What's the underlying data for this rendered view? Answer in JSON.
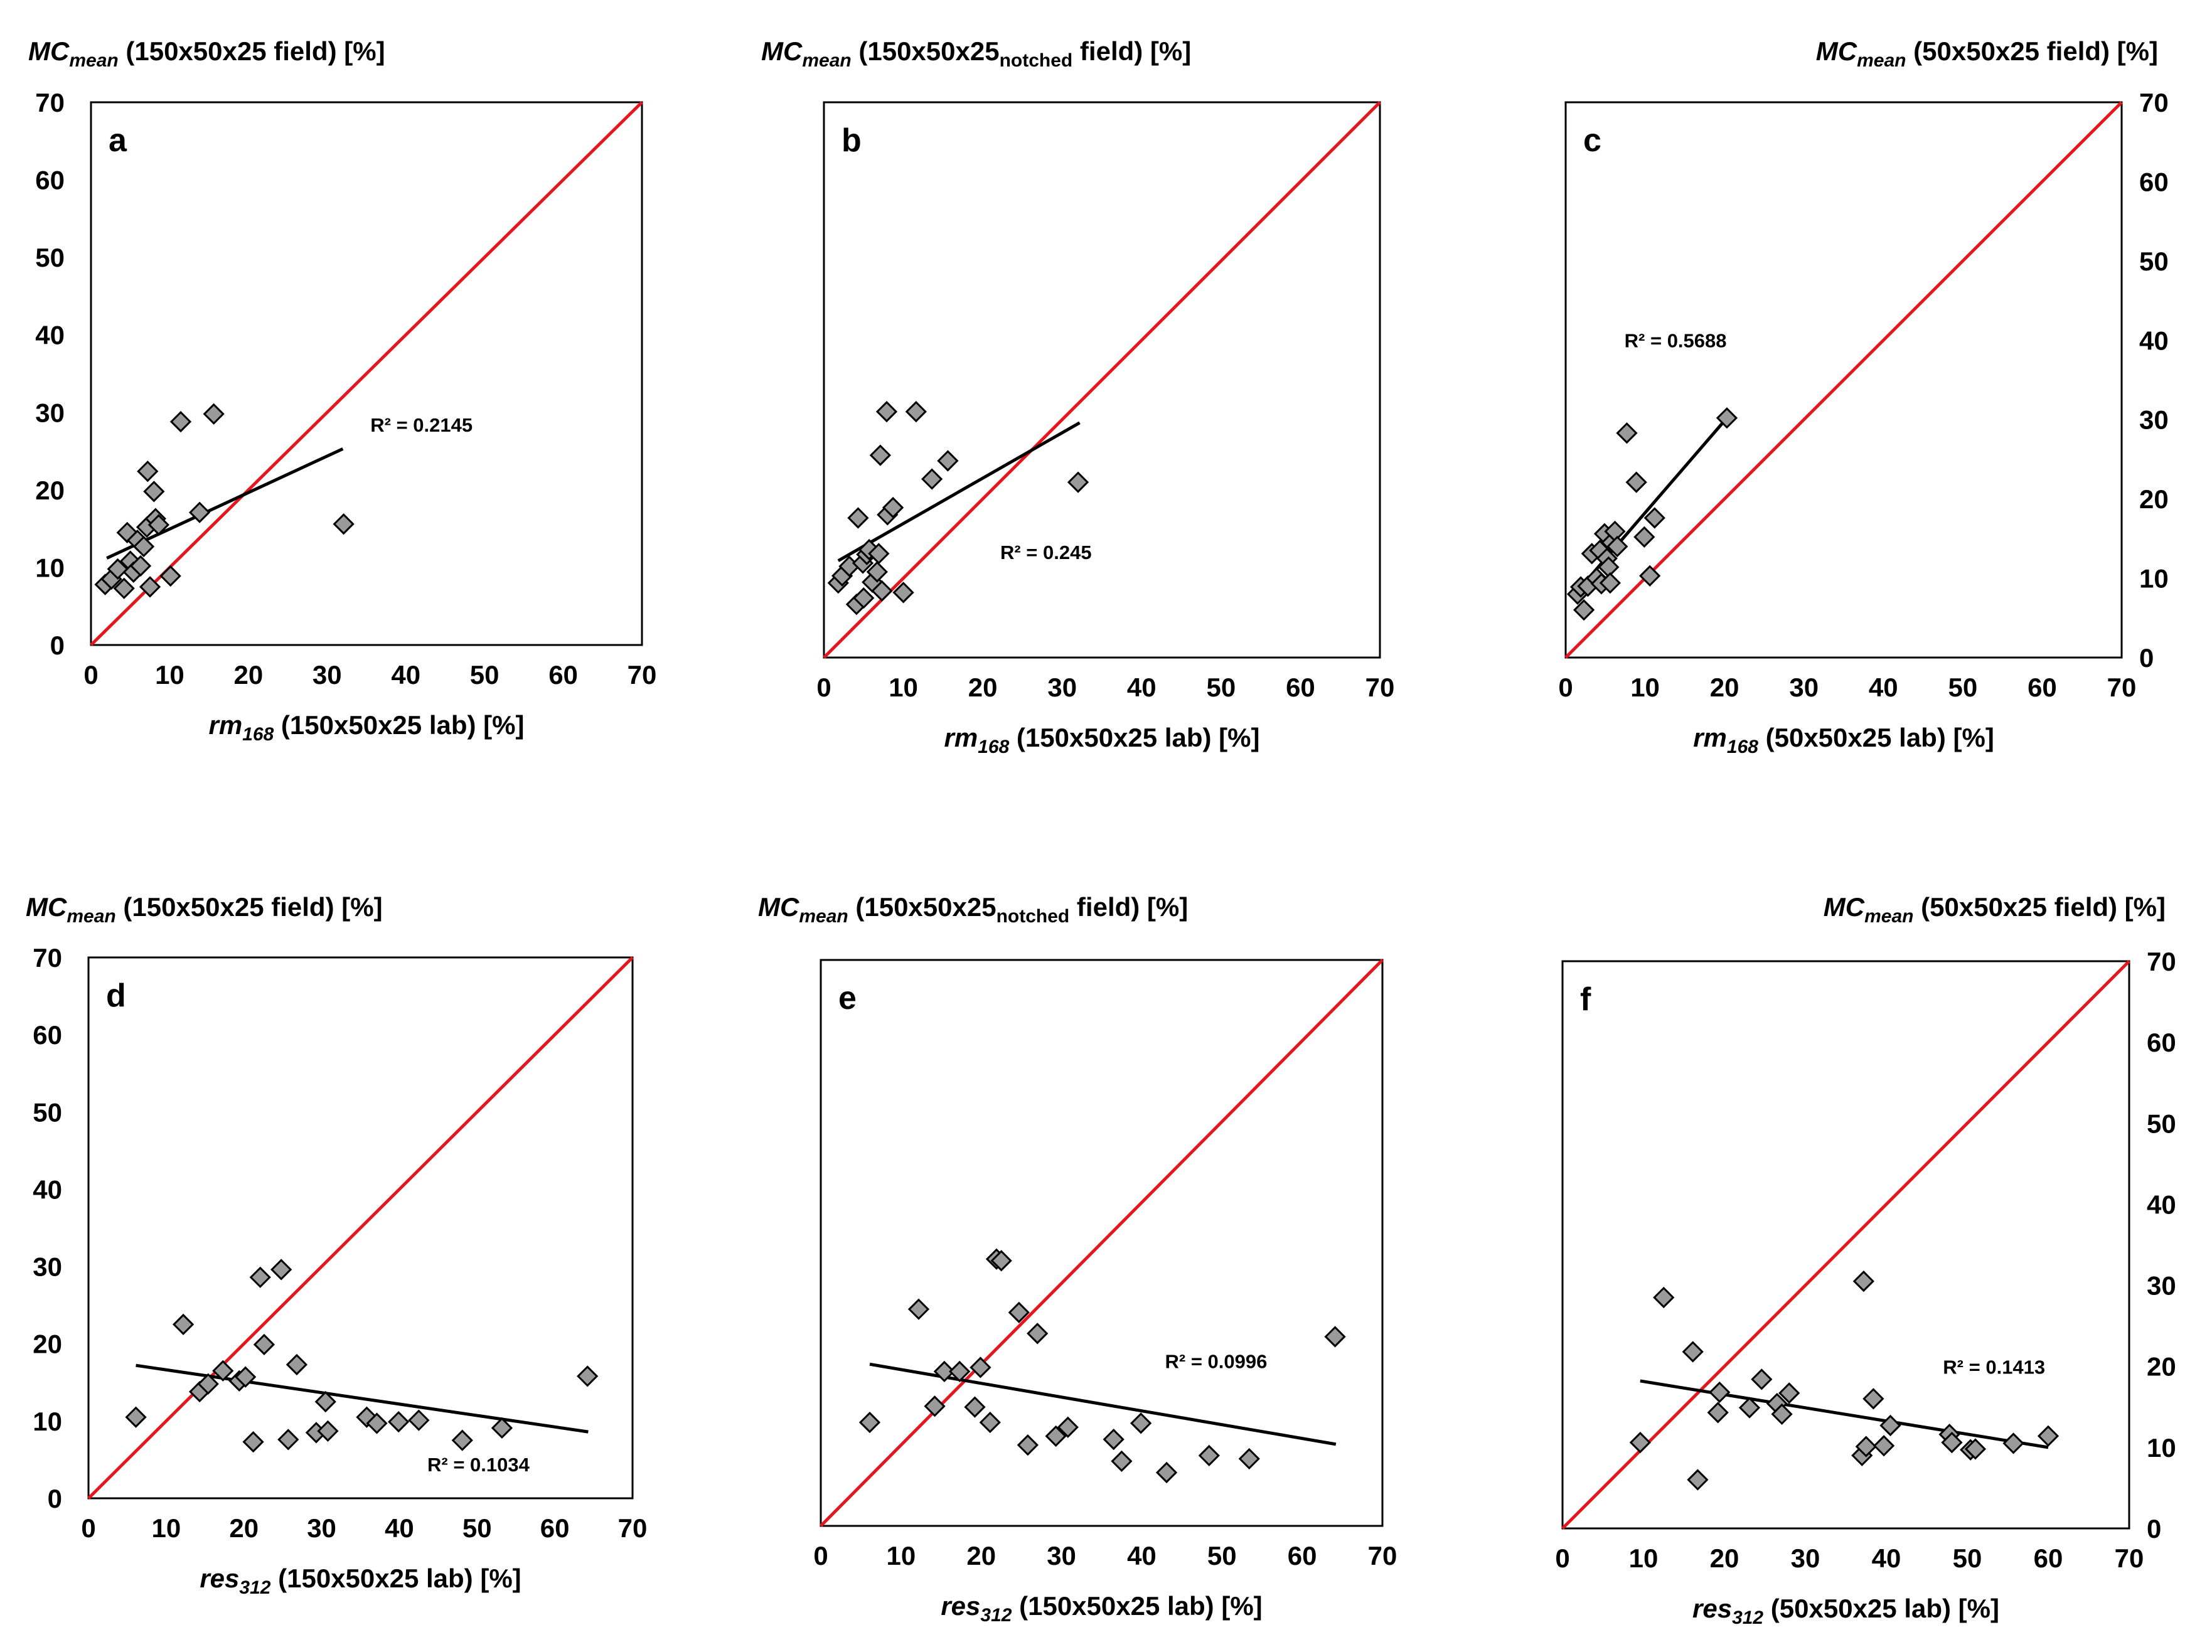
{
  "colors": {
    "identity_line": "#e3171d",
    "marker_fill": "#9a9a9a",
    "marker_stroke": "#000000",
    "trend_line": "#000000",
    "frame": "#000000"
  },
  "chart_data": [
    {
      "id": "a",
      "type": "scatter",
      "panel_label": "a",
      "xlim": [
        0,
        70
      ],
      "ylim": [
        0,
        70
      ],
      "xticks": [
        "0",
        "10",
        "20",
        "30",
        "40",
        "50",
        "60",
        "70"
      ],
      "yticks": [
        "0",
        "10",
        "20",
        "30",
        "40",
        "50",
        "60",
        "70"
      ],
      "y_axis_side": "left",
      "xlabel": {
        "italic": "rm",
        "sub": "168",
        "rest": " (150x50x25 lab) [%]"
      },
      "ylabel": {
        "italic": "MC",
        "sub": "mean",
        "rest": " (150x50x25 field) [%]"
      },
      "r2": "R² = 0.2145",
      "r2_pos": [
        35.5,
        27.5
      ],
      "trend": {
        "x0": 2,
        "y0": 11.2,
        "x1": 32,
        "y1": 25.3
      },
      "points": [
        [
          1.8,
          7.8
        ],
        [
          2.6,
          8.5
        ],
        [
          3.4,
          9.8
        ],
        [
          4.2,
          7.3
        ],
        [
          4.6,
          14.5
        ],
        [
          5.0,
          10.8
        ],
        [
          5.4,
          9.4
        ],
        [
          5.9,
          13.5
        ],
        [
          6.3,
          10.2
        ],
        [
          6.7,
          12.7
        ],
        [
          7.1,
          15.2
        ],
        [
          7.2,
          22.4
        ],
        [
          7.5,
          7.5
        ],
        [
          8.0,
          19.8
        ],
        [
          8.2,
          16.3
        ],
        [
          8.6,
          15.5
        ],
        [
          10.1,
          8.9
        ],
        [
          11.4,
          28.8
        ],
        [
          13.8,
          17.1
        ],
        [
          15.6,
          29.8
        ],
        [
          32.1,
          15.6
        ]
      ]
    },
    {
      "id": "b",
      "type": "scatter",
      "panel_label": "b",
      "xlim": [
        0,
        70
      ],
      "ylim": [
        0,
        70
      ],
      "xticks": [
        "0",
        "10",
        "20",
        "30",
        "40",
        "50",
        "60",
        "70"
      ],
      "yticks": [],
      "y_axis_side": "none",
      "xlabel": {
        "italic": "rm",
        "sub": "168",
        "rest": " (150x50x25 lab) [%]"
      },
      "ylabel": {
        "italic": "MC",
        "sub": "mean",
        "rest": " (150x50x25",
        "sub2": "notched",
        "rest2": " field) [%]"
      },
      "r2": "R² = 0.245",
      "r2_pos": [
        22.2,
        12.4
      ],
      "trend": {
        "x0": 1.8,
        "y0": 12.2,
        "x1": 32.2,
        "y1": 29.6
      },
      "points": [
        [
          1.8,
          9.4
        ],
        [
          2.3,
          10.3
        ],
        [
          3.2,
          11.5
        ],
        [
          4.1,
          6.7
        ],
        [
          4.3,
          17.6
        ],
        [
          4.9,
          11.9
        ],
        [
          5.0,
          7.5
        ],
        [
          5.4,
          13.0
        ],
        [
          5.7,
          13.6
        ],
        [
          6.1,
          9.5
        ],
        [
          6.7,
          10.8
        ],
        [
          6.9,
          13.1
        ],
        [
          7.1,
          25.5
        ],
        [
          7.3,
          8.4
        ],
        [
          7.9,
          31.0
        ],
        [
          8.0,
          18.0
        ],
        [
          8.7,
          18.9
        ],
        [
          10.0,
          8.2
        ],
        [
          11.6,
          31.0
        ],
        [
          13.6,
          22.5
        ],
        [
          15.6,
          24.8
        ],
        [
          32.0,
          22.1
        ]
      ]
    },
    {
      "id": "c",
      "type": "scatter",
      "panel_label": "c",
      "xlim": [
        0,
        70
      ],
      "ylim": [
        0,
        70
      ],
      "xticks": [
        "0",
        "10",
        "20",
        "30",
        "40",
        "50",
        "60",
        "70"
      ],
      "yticks": [
        "0",
        "10",
        "20",
        "30",
        "40",
        "50",
        "60",
        "70"
      ],
      "y_axis_side": "right",
      "xlabel": {
        "italic": "rm",
        "sub": "168",
        "rest": " (50x50x25 lab) [%]"
      },
      "ylabel": {
        "italic": "MC",
        "sub": "mean",
        "rest": " (50x50x25 field) [%]"
      },
      "r2": "R² = 0.5688",
      "r2_pos": [
        7.4,
        39.1
      ],
      "trend": {
        "x0": 1.6,
        "y0": 8.5,
        "x1": 20.3,
        "y1": 30.2
      },
      "points": [
        [
          1.5,
          8.0
        ],
        [
          1.9,
          8.9
        ],
        [
          2.3,
          6.0
        ],
        [
          2.8,
          9.0
        ],
        [
          3.3,
          13.1
        ],
        [
          3.9,
          10.0
        ],
        [
          4.3,
          13.5
        ],
        [
          4.5,
          9.3
        ],
        [
          4.9,
          15.6
        ],
        [
          5.2,
          12.5
        ],
        [
          5.4,
          11.4
        ],
        [
          5.6,
          9.4
        ],
        [
          5.8,
          14.5
        ],
        [
          6.2,
          15.9
        ],
        [
          6.5,
          14.0
        ],
        [
          7.7,
          28.3
        ],
        [
          8.9,
          22.1
        ],
        [
          9.9,
          15.2
        ],
        [
          10.6,
          10.3
        ],
        [
          11.2,
          17.6
        ],
        [
          20.3,
          30.2
        ]
      ]
    },
    {
      "id": "d",
      "type": "scatter",
      "panel_label": "d",
      "xlim": [
        0,
        70
      ],
      "ylim": [
        0,
        70
      ],
      "xticks": [
        "0",
        "10",
        "20",
        "30",
        "40",
        "50",
        "60",
        "70"
      ],
      "yticks": [
        "0",
        "10",
        "20",
        "30",
        "40",
        "50",
        "60",
        "70"
      ],
      "y_axis_side": "left",
      "xlabel": {
        "italic": "res",
        "sub": "312",
        "rest": " (150x50x25 lab) [%]"
      },
      "ylabel": {
        "italic": "MC",
        "sub": "mean",
        "rest": " (150x50x25 field) [%]"
      },
      "r2": "R² = 0.1034",
      "r2_pos": [
        43.6,
        3.5
      ],
      "trend": {
        "x0": 6.1,
        "y0": 17.2,
        "x1": 64.3,
        "y1": 8.6
      },
      "points": [
        [
          6.1,
          10.5
        ],
        [
          12.2,
          22.5
        ],
        [
          14.3,
          13.8
        ],
        [
          15.4,
          14.8
        ],
        [
          17.3,
          16.5
        ],
        [
          19.4,
          15.2
        ],
        [
          20.2,
          15.7
        ],
        [
          21.2,
          7.3
        ],
        [
          22.1,
          28.6
        ],
        [
          22.6,
          19.9
        ],
        [
          24.8,
          29.6
        ],
        [
          25.7,
          7.6
        ],
        [
          26.8,
          17.3
        ],
        [
          29.3,
          8.5
        ],
        [
          30.5,
          12.5
        ],
        [
          30.8,
          8.7
        ],
        [
          35.8,
          10.5
        ],
        [
          37.1,
          9.7
        ],
        [
          39.9,
          9.9
        ],
        [
          42.5,
          10.1
        ],
        [
          48.1,
          7.5
        ],
        [
          53.2,
          9.1
        ],
        [
          64.2,
          15.8
        ]
      ]
    },
    {
      "id": "e",
      "type": "scatter",
      "panel_label": "e",
      "xlim": [
        0,
        70
      ],
      "ylim": [
        0,
        70
      ],
      "xticks": [
        "0",
        "10",
        "20",
        "30",
        "40",
        "50",
        "60",
        "70"
      ],
      "yticks": [],
      "y_axis_side": "none",
      "xlabel": {
        "italic": "res",
        "sub": "312",
        "rest": " (150x50x25 lab) [%]"
      },
      "ylabel": {
        "italic": "MC",
        "sub": "mean",
        "rest": " (150x50x25",
        "sub2": "notched",
        "rest2": " field) [%]"
      },
      "r2": "R² = 0.0996",
      "r2_pos": [
        42.9,
        19.5
      ],
      "trend": {
        "x0": 6.1,
        "y0": 20.0,
        "x1": 64.2,
        "y1": 10.1
      },
      "points": [
        [
          6.1,
          12.8
        ],
        [
          12.2,
          26.8
        ],
        [
          14.2,
          14.8
        ],
        [
          15.4,
          19.1
        ],
        [
          17.3,
          19.1
        ],
        [
          19.2,
          14.7
        ],
        [
          19.9,
          19.6
        ],
        [
          21.1,
          12.8
        ],
        [
          21.9,
          33.0
        ],
        [
          22.5,
          32.8
        ],
        [
          24.7,
          26.4
        ],
        [
          25.8,
          10.0
        ],
        [
          27.0,
          23.8
        ],
        [
          29.3,
          11.1
        ],
        [
          30.8,
          12.2
        ],
        [
          36.5,
          10.7
        ],
        [
          37.5,
          8.0
        ],
        [
          39.9,
          12.7
        ],
        [
          43.1,
          6.6
        ],
        [
          48.4,
          8.7
        ],
        [
          53.4,
          8.3
        ],
        [
          64.1,
          23.4
        ]
      ]
    },
    {
      "id": "f",
      "type": "scatter",
      "panel_label": "f",
      "xlim": [
        0,
        70
      ],
      "ylim": [
        0,
        70
      ],
      "xticks": [
        "0",
        "10",
        "20",
        "30",
        "40",
        "50",
        "60",
        "70"
      ],
      "yticks": [
        "0",
        "10",
        "20",
        "30",
        "40",
        "50",
        "60",
        "70"
      ],
      "y_axis_side": "right",
      "xlabel": {
        "italic": "res",
        "sub": "312",
        "rest": " (50x50x25 lab) [%]"
      },
      "ylabel": {
        "italic": "MC",
        "sub": "mean",
        "rest": " (50x50x25 field) [%]"
      },
      "r2": "R² = 0.1413",
      "r2_pos": [
        47.0,
        19.1
      ],
      "trend": {
        "x0": 9.6,
        "y0": 18.2,
        "x1": 60.0,
        "y1": 10.0
      },
      "points": [
        [
          9.6,
          10.6
        ],
        [
          12.5,
          28.5
        ],
        [
          16.1,
          21.8
        ],
        [
          16.7,
          6.0
        ],
        [
          19.2,
          14.3
        ],
        [
          19.4,
          16.8
        ],
        [
          23.1,
          14.9
        ],
        [
          24.6,
          18.4
        ],
        [
          26.5,
          15.4
        ],
        [
          27.1,
          14.1
        ],
        [
          28.0,
          16.7
        ],
        [
          37.0,
          9.0
        ],
        [
          37.2,
          30.5
        ],
        [
          37.5,
          10.1
        ],
        [
          38.4,
          16.0
        ],
        [
          39.7,
          10.2
        ],
        [
          40.5,
          12.7
        ],
        [
          47.8,
          11.6
        ],
        [
          48.1,
          10.6
        ],
        [
          50.4,
          9.7
        ],
        [
          51.0,
          9.8
        ],
        [
          55.7,
          10.5
        ],
        [
          60.0,
          11.4
        ]
      ]
    }
  ]
}
